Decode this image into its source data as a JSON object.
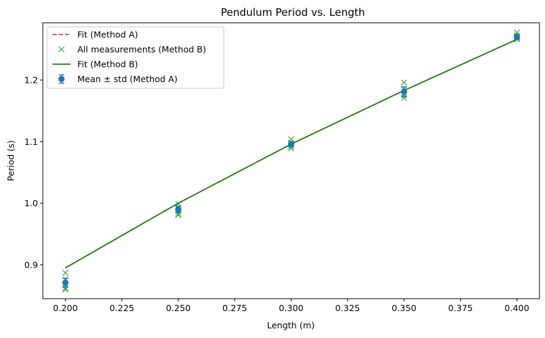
{
  "chart_data": {
    "type": "scatter",
    "title": "Pendulum Period vs. Length",
    "xlabel": "Length (m)",
    "ylabel": "Period (s)",
    "xlim": [
      0.19,
      0.41
    ],
    "ylim": [
      0.845,
      1.293
    ],
    "x_ticks": [
      0.2,
      0.225,
      0.25,
      0.275,
      0.3,
      0.325,
      0.35,
      0.375,
      0.4
    ],
    "x_tick_labels": [
      "0.200",
      "0.225",
      "0.250",
      "0.275",
      "0.300",
      "0.325",
      "0.350",
      "0.375",
      "0.400"
    ],
    "y_ticks": [
      0.9,
      1.0,
      1.1,
      1.2
    ],
    "y_tick_labels": [
      "0.9",
      "1.0",
      "1.1",
      "1.2"
    ],
    "grid": false,
    "legend_position": "top-left",
    "colors": {
      "fit_a": "#d62728",
      "measurements_b": "#2ca02c",
      "fit_b": "#1a7f0e",
      "mean_a": "#1f77b4"
    },
    "series": [
      {
        "name": "Fit (Method A)",
        "kind": "dashed-line",
        "x": [
          0.2,
          0.25,
          0.3,
          0.35,
          0.4
        ],
        "y": [
          0.895,
          1.0,
          1.096,
          1.183,
          1.266
        ]
      },
      {
        "name": "All measurements (Method B)",
        "kind": "x-markers",
        "x": [
          0.2,
          0.2,
          0.2,
          0.2,
          0.2,
          0.25,
          0.25,
          0.25,
          0.25,
          0.25,
          0.3,
          0.3,
          0.3,
          0.3,
          0.3,
          0.35,
          0.35,
          0.35,
          0.35,
          0.35,
          0.4,
          0.4,
          0.4,
          0.4,
          0.4
        ],
        "y": [
          0.887,
          0.876,
          0.868,
          0.862,
          0.86,
          0.999,
          0.992,
          0.988,
          0.983,
          0.981,
          1.104,
          1.098,
          1.095,
          1.092,
          1.089,
          1.196,
          1.184,
          1.178,
          1.175,
          1.171,
          1.277,
          1.272,
          1.27,
          1.268,
          1.266
        ]
      },
      {
        "name": "Fit (Method B)",
        "kind": "solid-line",
        "x": [
          0.2,
          0.25,
          0.3,
          0.35,
          0.4
        ],
        "y": [
          0.895,
          1.0,
          1.096,
          1.183,
          1.266
        ]
      },
      {
        "name": "Mean ± std (Method A)",
        "kind": "errorbar",
        "x": [
          0.2,
          0.25,
          0.3,
          0.35,
          0.4
        ],
        "y": [
          0.871,
          0.99,
          1.096,
          1.181,
          1.27
        ],
        "err": [
          0.007,
          0.005,
          0.004,
          0.008,
          0.004
        ]
      }
    ]
  }
}
